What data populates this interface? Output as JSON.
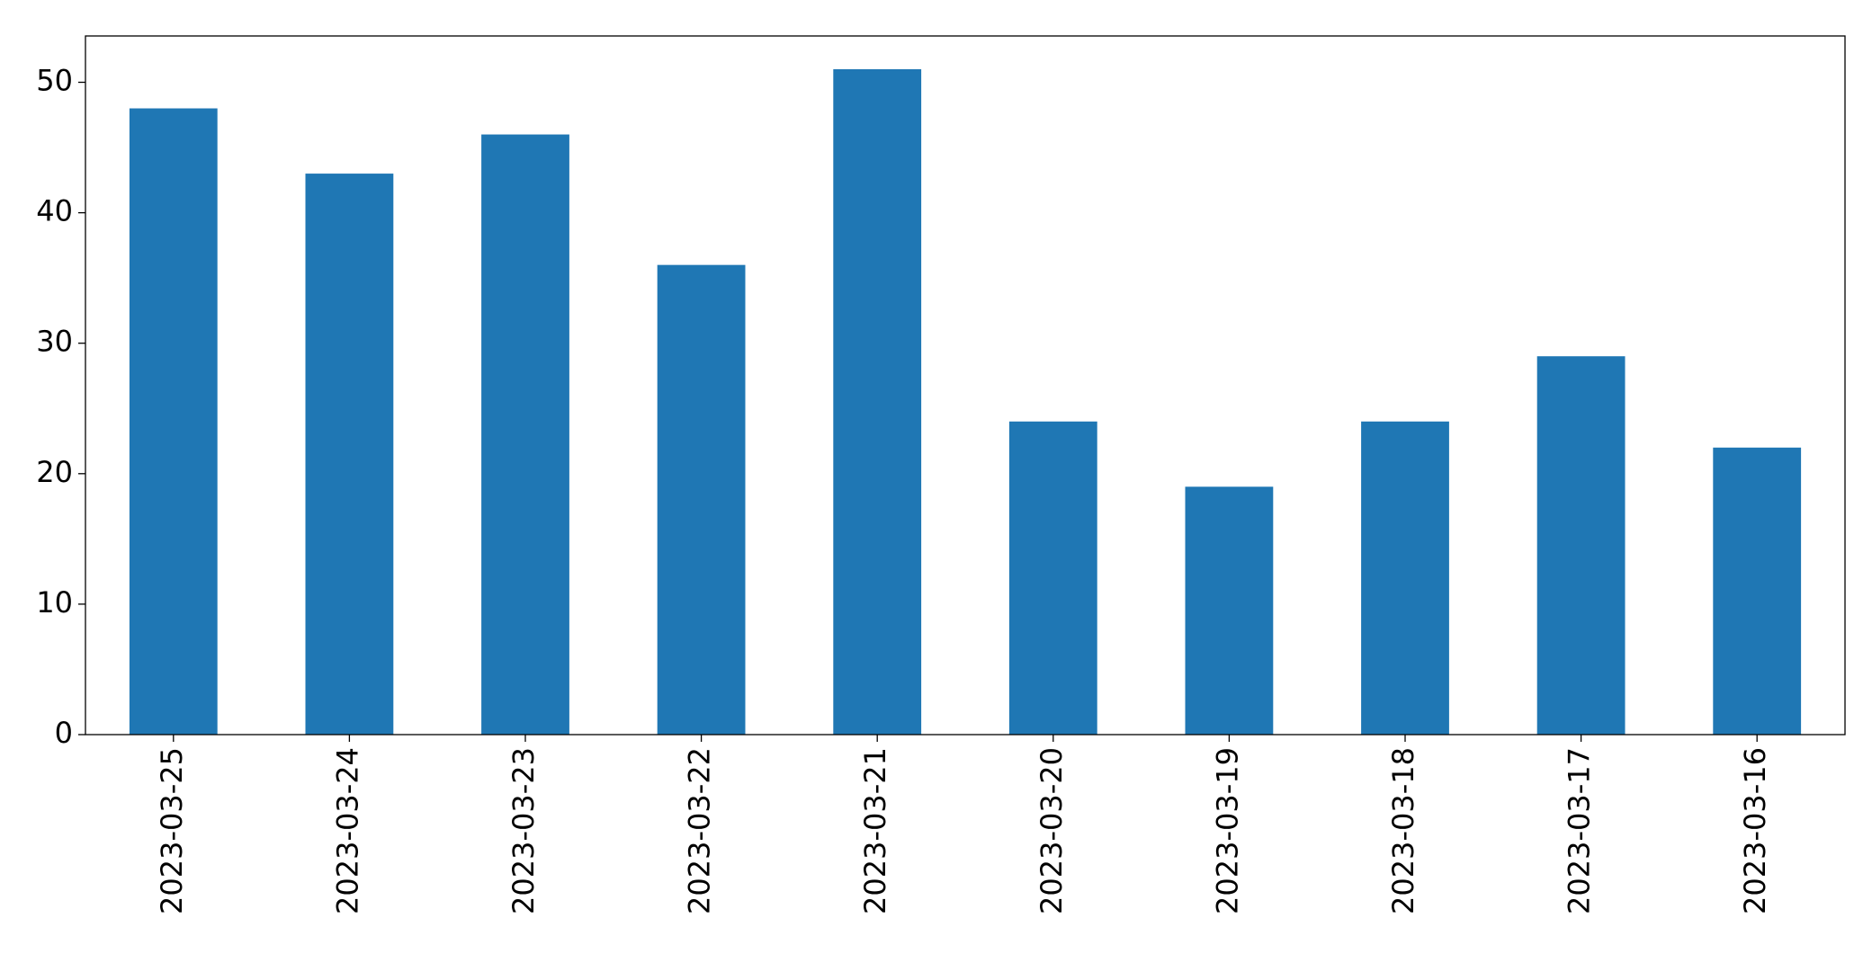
{
  "chart_data": {
    "type": "bar",
    "categories": [
      "2023-03-25",
      "2023-03-24",
      "2023-03-23",
      "2023-03-22",
      "2023-03-21",
      "2023-03-20",
      "2023-03-19",
      "2023-03-18",
      "2023-03-17",
      "2023-03-16"
    ],
    "values": [
      48,
      43,
      46,
      36,
      51,
      24,
      19,
      24,
      29,
      22
    ],
    "color": "#1f77b4",
    "ylim": [
      0,
      53.55
    ],
    "yticks": [
      0,
      10,
      20,
      30,
      40,
      50
    ],
    "grid": false
  }
}
